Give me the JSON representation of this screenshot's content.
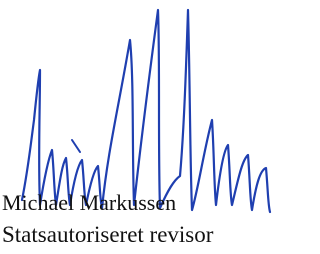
{
  "signature": {
    "name": "Michael Markussen",
    "title": "Statsautoriseret revisor"
  }
}
